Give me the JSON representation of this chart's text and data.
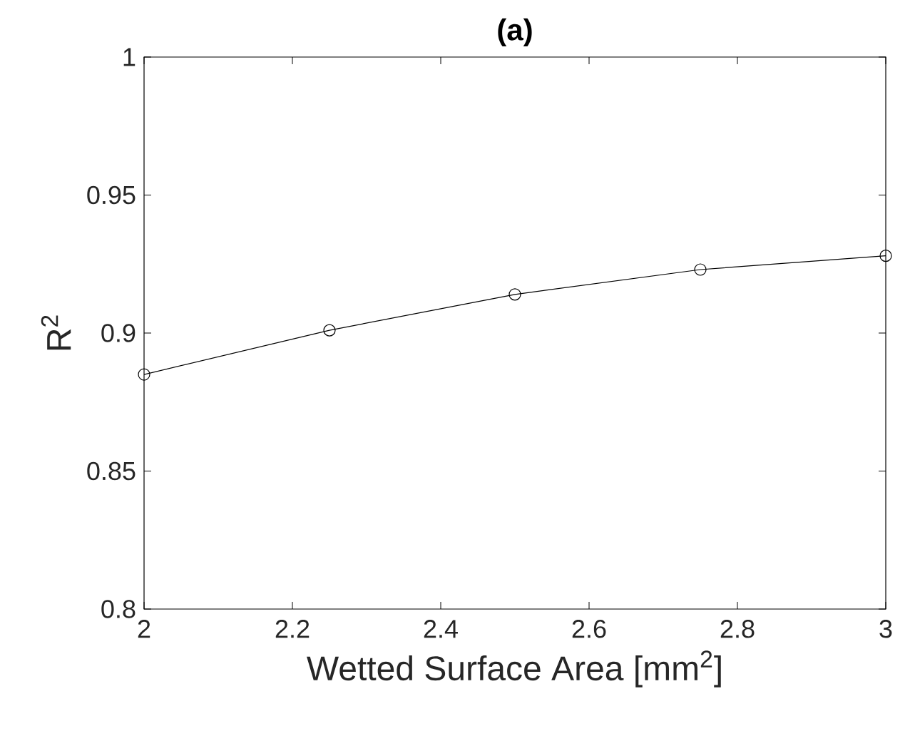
{
  "chart_data": {
    "type": "line",
    "title": "(a)",
    "xlabel": "Wetted Surface Area [mm$^{2}$]",
    "ylabel": "R$^{2}$",
    "x": [
      2,
      2.25,
      2.5,
      2.75,
      3
    ],
    "series": [
      {
        "color": "#000000",
        "values": [
          0.885,
          0.901,
          0.914,
          0.923,
          0.928
        ]
      }
    ],
    "xlim": [
      2,
      3
    ],
    "ylim": [
      0.8,
      1
    ],
    "xticks": [
      2,
      2.2,
      2.4,
      2.6,
      2.8,
      3
    ],
    "yticks": [
      0.8,
      0.85,
      0.9,
      0.95,
      1
    ],
    "marker": "circle",
    "line_style": "solid"
  }
}
